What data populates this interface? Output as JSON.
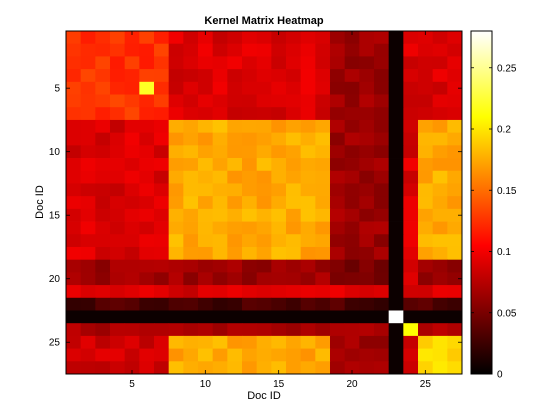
{
  "chart_data": {
    "type": "heatmap",
    "title": "Kernel Matrix Heatmap",
    "xlabel": "Doc ID",
    "ylabel": "Doc ID",
    "n": 27,
    "x_ticks": [
      5,
      10,
      15,
      20,
      25
    ],
    "y_ticks": [
      5,
      10,
      15,
      20,
      25
    ],
    "colorbar": {
      "colormap": "hot",
      "range": [
        0,
        0.28
      ],
      "ticks": [
        0,
        0.05,
        0.1,
        0.15,
        0.2,
        0.25
      ],
      "tick_labels": [
        "0",
        "0.05",
        "0.1",
        "0.15",
        "0.2",
        "0.25"
      ]
    },
    "clusters": {
      "A": [
        1,
        2,
        3,
        4,
        5,
        6,
        7
      ],
      "B": [
        8,
        9,
        10,
        11,
        12,
        13,
        14,
        15,
        16,
        17,
        18
      ],
      "C": [
        25,
        26,
        27
      ],
      "weak": [
        19,
        20,
        21,
        22
      ],
      "near_zero": [
        23
      ],
      "x_only_weak": [
        24
      ]
    },
    "block_values": {
      "A_A": 0.125,
      "A_B": 0.09,
      "A_C": 0.09,
      "B_A": 0.09,
      "B_B": 0.175,
      "B_C": 0.175,
      "C_A": 0.085,
      "C_B": 0.175,
      "C_C": 0.195,
      "weak_row": 0.065,
      "weak_col": 0.065,
      "weak_weak": 0.05,
      "row_21_background": 0.09,
      "row_22_background": 0.03,
      "row_23_background": 0.005,
      "row_24_background": 0.07,
      "col_24_background": 0.09
    },
    "cell_overrides": [
      {
        "row": 5,
        "col": 6,
        "value": 0.22
      },
      {
        "row": 23,
        "col": 23,
        "value": 0.28
      },
      {
        "row": 24,
        "col": 24,
        "value": 0.21
      }
    ]
  }
}
